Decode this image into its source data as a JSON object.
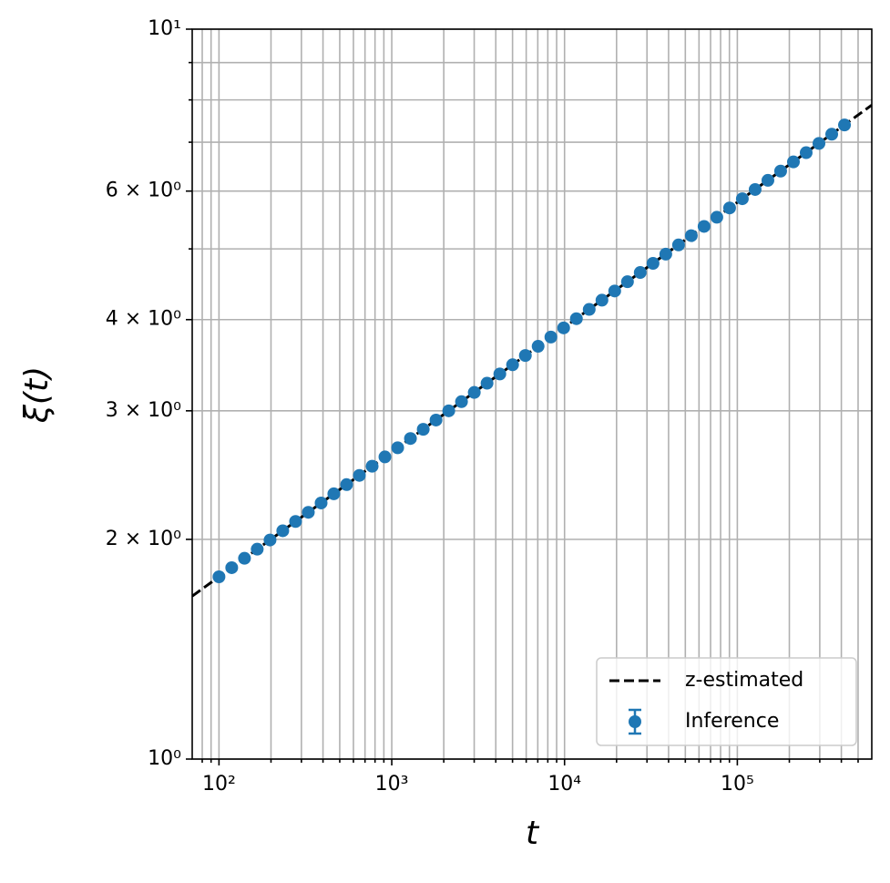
{
  "chart_data": {
    "type": "scatter",
    "xlabel": "t",
    "ylabel": "ξ(t)",
    "xscale": "log",
    "yscale": "log",
    "grid": true,
    "legend": "lower right",
    "xlim": [
      70,
      600000
    ],
    "ylim": [
      1,
      10
    ],
    "xticks": [
      {
        "value": 100,
        "label": "10²"
      },
      {
        "value": 1000,
        "label": "10³"
      },
      {
        "value": 10000,
        "label": "10⁴"
      },
      {
        "value": 100000,
        "label": "10⁵"
      }
    ],
    "xminorticks": [
      80,
      90,
      200,
      300,
      400,
      500,
      600,
      700,
      800,
      900,
      2000,
      3000,
      4000,
      5000,
      6000,
      7000,
      8000,
      9000,
      20000,
      30000,
      40000,
      50000,
      60000,
      70000,
      80000,
      90000,
      200000,
      300000,
      400000,
      500000
    ],
    "yticks": [
      {
        "value": 1,
        "label": "10⁰"
      },
      {
        "value": 2,
        "label": "2 × 10⁰"
      },
      {
        "value": 3,
        "label": "3 × 10⁰"
      },
      {
        "value": 4,
        "label": "4 × 10⁰"
      },
      {
        "value": 6,
        "label": "6 × 10⁰"
      },
      {
        "value": 10,
        "label": "10¹"
      }
    ],
    "yminorticks": [
      5,
      7,
      8,
      9
    ],
    "series": [
      {
        "name": "z-estimated",
        "color": "#000000",
        "style": "dashed",
        "x": [
          70,
          600000
        ],
        "values": [
          1.672,
          7.87
        ]
      },
      {
        "name": "Inference",
        "color": "#1f77b4",
        "style": "errorbar",
        "x": [
          100,
          118.5,
          140.5,
          166.5,
          197.5,
          234,
          277.5,
          329,
          390,
          462,
          548,
          649.5,
          770,
          913,
          1082,
          1283,
          1521,
          1803,
          2137,
          2533,
          3003,
          3560,
          4221,
          5003,
          5932,
          7031,
          8335,
          9880,
          11710,
          13890,
          16460,
          19510,
          23130,
          27420,
          32510,
          38540,
          45680,
          54150,
          64190,
          76090,
          90200,
          106900,
          126800,
          150300,
          178100,
          211200,
          250300,
          296800,
          351800,
          417000
        ],
        "values": [
          1.777,
          1.829,
          1.884,
          1.939,
          1.996,
          2.055,
          2.116,
          2.178,
          2.243,
          2.309,
          2.377,
          2.447,
          2.519,
          2.594,
          2.67,
          2.749,
          2.83,
          2.914,
          3.0,
          3.088,
          3.179,
          3.273,
          3.37,
          3.469,
          3.572,
          3.677,
          3.786,
          3.897,
          4.012,
          4.131,
          4.253,
          4.378,
          4.508,
          4.641,
          4.777,
          4.918,
          5.063,
          5.213,
          5.367,
          5.525,
          5.689,
          5.857,
          6.03,
          6.207,
          6.391,
          6.579,
          6.773,
          6.974,
          7.179,
          7.391
        ]
      }
    ]
  }
}
